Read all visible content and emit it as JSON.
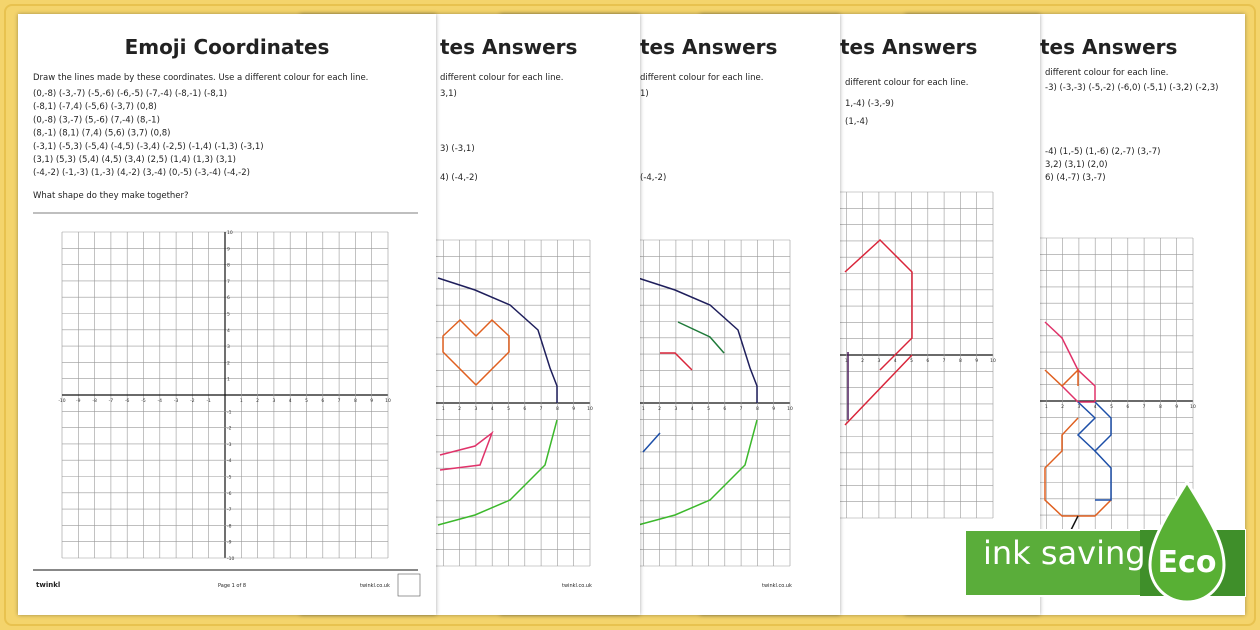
{
  "pages": [
    {
      "title": "Emoji Coordinates",
      "instruction": "Draw the lines made by these coordinates. Use a different colour for each line.",
      "coordinates": [
        "(0,-8) (-3,-7) (-5,-6) (-6,-5) (-7,-4) (-8,-1) (-8,1)",
        "(-8,1) (-7,4) (-5,6) (-3,7) (0,8)",
        "(0,-8) (3,-7) (5,-6) (7,-4) (8,-1)",
        "(8,-1) (8,1) (7,4) (5,6) (3,7) (0,8)",
        "(-3,1) (-5,3) (-5,4) (-4,5) (-3,4) (-2,5) (-1,4) (-1,3) (-3,1)",
        "(3,1) (5,3) (5,4) (4,5) (3,4) (2,5) (1,4) (1,3) (3,1)",
        "(-4,-2) (-1,-3) (1,-3) (4,-2) (3,-4) (0,-5) (-3,-4) (-4,-2)"
      ],
      "question": "What shape do they make together?",
      "page_number": "Page 1 of 8",
      "website": "twinkl.co.uk",
      "logo": "twinkl"
    },
    {
      "title": "tes Answers",
      "lines": [
        "different colour for each line.",
        "3,1)",
        "3) (-3,1)",
        "4) (-4,-2)"
      ],
      "website": "twinkl.co.uk"
    },
    {
      "title": "tes Answers",
      "lines": [
        "different colour for each line.",
        "1)",
        "(-4,-2)"
      ],
      "website": "twinkl.co.uk"
    },
    {
      "title": "tes Answers",
      "lines": [
        "different colour for each line.",
        "1,-4) (-3,-9)",
        "(1,-4)"
      ]
    },
    {
      "title": "tes Answers",
      "lines": [
        "different colour for each line.",
        "-3) (-3,-3) (-5,-2) (-6,0) (-5,1) (-3,2) (-2,3)",
        "-4) (1,-5) (1,-6) (2,-7) (3,-7)",
        "3,2) (3,1) (2,0)",
        "6) (4,-7) (3,-7)"
      ]
    }
  ],
  "axis_labels": [
    -10,
    -9,
    -8,
    -7,
    -6,
    -5,
    -4,
    -3,
    -2,
    -1,
    1,
    2,
    3,
    4,
    5,
    6,
    7,
    8,
    9,
    10
  ],
  "badge": {
    "label": "ink saving",
    "tag": "Eco"
  }
}
